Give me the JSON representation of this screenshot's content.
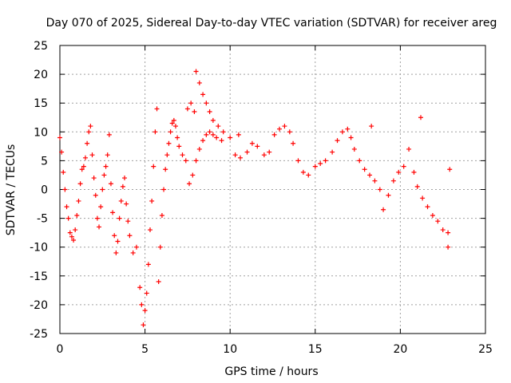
{
  "chart_data": {
    "type": "scatter",
    "title": "Day 070 of 2025, Sidereal Day-to-day VTEC variation (SDTVAR) for receiver areg",
    "xlabel": "GPS time / hours",
    "ylabel": "SDTVAR / TECUs",
    "xlim": [
      0,
      25
    ],
    "ylim": [
      -25,
      25
    ],
    "xticks": [
      "0",
      "5",
      "10",
      "15",
      "20",
      "25"
    ],
    "yticks": [
      "25",
      "20",
      "15",
      "10",
      "5",
      "0",
      "-5",
      "-10",
      "-15",
      "-20",
      "-25"
    ],
    "grid": true,
    "marker": "+",
    "colors": {
      "points": "#ff0000"
    },
    "series": [
      {
        "name": "SDTVAR",
        "points": [
          [
            0.0,
            9.0
          ],
          [
            0.1,
            6.5
          ],
          [
            0.2,
            3.0
          ],
          [
            0.3,
            0.0
          ],
          [
            0.4,
            -3.0
          ],
          [
            0.5,
            -5.0
          ],
          [
            0.6,
            -7.5
          ],
          [
            0.7,
            -8.2
          ],
          [
            0.8,
            -8.8
          ],
          [
            0.9,
            -7.0
          ],
          [
            1.0,
            -4.5
          ],
          [
            1.1,
            -2.0
          ],
          [
            1.2,
            1.0
          ],
          [
            1.3,
            3.5
          ],
          [
            1.4,
            4.0
          ],
          [
            1.5,
            5.5
          ],
          [
            1.6,
            8.0
          ],
          [
            1.7,
            10.0
          ],
          [
            1.8,
            11.0
          ],
          [
            1.9,
            6.0
          ],
          [
            2.0,
            2.0
          ],
          [
            2.1,
            -1.0
          ],
          [
            2.2,
            -5.0
          ],
          [
            2.3,
            -6.5
          ],
          [
            2.4,
            -3.0
          ],
          [
            2.5,
            0.0
          ],
          [
            2.6,
            2.5
          ],
          [
            2.7,
            4.0
          ],
          [
            2.8,
            6.0
          ],
          [
            2.9,
            9.5
          ],
          [
            3.0,
            1.0
          ],
          [
            3.1,
            -4.0
          ],
          [
            3.2,
            -8.0
          ],
          [
            3.3,
            -11.0
          ],
          [
            3.4,
            -9.0
          ],
          [
            3.5,
            -5.0
          ],
          [
            3.6,
            -2.0
          ],
          [
            3.7,
            0.5
          ],
          [
            3.8,
            2.0
          ],
          [
            3.9,
            -2.5
          ],
          [
            4.0,
            -5.5
          ],
          [
            4.1,
            -8.0
          ],
          [
            4.3,
            -11.0
          ],
          [
            4.5,
            -10.0
          ],
          [
            4.7,
            -17.0
          ],
          [
            4.8,
            -20.0
          ],
          [
            4.9,
            -23.5
          ],
          [
            5.0,
            -21.0
          ],
          [
            5.1,
            -18.0
          ],
          [
            5.2,
            -13.0
          ],
          [
            5.3,
            -7.0
          ],
          [
            5.4,
            -2.0
          ],
          [
            5.5,
            4.0
          ],
          [
            5.6,
            10.0
          ],
          [
            5.7,
            14.0
          ],
          [
            5.8,
            -16.0
          ],
          [
            5.9,
            -10.0
          ],
          [
            6.0,
            -4.5
          ],
          [
            6.1,
            0.0
          ],
          [
            6.2,
            3.5
          ],
          [
            6.3,
            6.0
          ],
          [
            6.4,
            8.0
          ],
          [
            6.5,
            10.0
          ],
          [
            6.6,
            11.5
          ],
          [
            6.7,
            12.0
          ],
          [
            6.8,
            11.0
          ],
          [
            6.9,
            9.0
          ],
          [
            7.0,
            7.5
          ],
          [
            7.2,
            6.0
          ],
          [
            7.4,
            5.0
          ],
          [
            7.6,
            1.0
          ],
          [
            7.8,
            2.5
          ],
          [
            8.0,
            5.0
          ],
          [
            8.2,
            7.0
          ],
          [
            8.4,
            8.5
          ],
          [
            8.6,
            9.5
          ],
          [
            8.8,
            10.0
          ],
          [
            9.0,
            9.5
          ],
          [
            9.2,
            9.0
          ],
          [
            9.5,
            8.5
          ],
          [
            7.5,
            14.0
          ],
          [
            7.7,
            15.0
          ],
          [
            7.9,
            13.5
          ],
          [
            8.0,
            20.5
          ],
          [
            8.2,
            18.5
          ],
          [
            8.4,
            16.5
          ],
          [
            8.6,
            15.0
          ],
          [
            8.8,
            13.5
          ],
          [
            9.0,
            12.0
          ],
          [
            9.3,
            11.0
          ],
          [
            9.6,
            10.0
          ],
          [
            10.0,
            9.0
          ],
          [
            10.3,
            6.0
          ],
          [
            10.6,
            5.5
          ],
          [
            11.0,
            6.5
          ],
          [
            11.3,
            8.0
          ],
          [
            11.6,
            7.5
          ],
          [
            12.0,
            6.0
          ],
          [
            12.3,
            6.5
          ],
          [
            12.6,
            9.5
          ],
          [
            12.9,
            10.5
          ],
          [
            13.2,
            11.0
          ],
          [
            13.5,
            10.0
          ],
          [
            13.7,
            8.0
          ],
          [
            14.0,
            5.0
          ],
          [
            14.3,
            3.0
          ],
          [
            14.6,
            2.5
          ],
          [
            15.0,
            4.0
          ],
          [
            15.3,
            4.5
          ],
          [
            15.6,
            5.0
          ],
          [
            16.0,
            6.5
          ],
          [
            16.3,
            8.5
          ],
          [
            16.6,
            10.0
          ],
          [
            16.9,
            10.5
          ],
          [
            17.1,
            9.0
          ],
          [
            17.3,
            7.0
          ],
          [
            17.6,
            5.0
          ],
          [
            17.9,
            3.5
          ],
          [
            18.2,
            2.5
          ],
          [
            18.5,
            1.5
          ],
          [
            18.8,
            0.0
          ],
          [
            19.0,
            -3.5
          ],
          [
            19.3,
            -1.0
          ],
          [
            19.6,
            1.5
          ],
          [
            19.9,
            3.0
          ],
          [
            20.2,
            4.0
          ],
          [
            20.5,
            7.0
          ],
          [
            20.8,
            3.0
          ],
          [
            21.0,
            0.5
          ],
          [
            21.3,
            -1.5
          ],
          [
            21.6,
            -3.0
          ],
          [
            21.9,
            -4.5
          ],
          [
            22.2,
            -5.5
          ],
          [
            22.5,
            -7.0
          ],
          [
            22.8,
            -7.5
          ],
          [
            22.8,
            -10.0
          ],
          [
            22.9,
            3.5
          ],
          [
            21.2,
            12.5
          ],
          [
            18.3,
            11.0
          ],
          [
            10.5,
            9.5
          ]
        ]
      }
    ]
  }
}
